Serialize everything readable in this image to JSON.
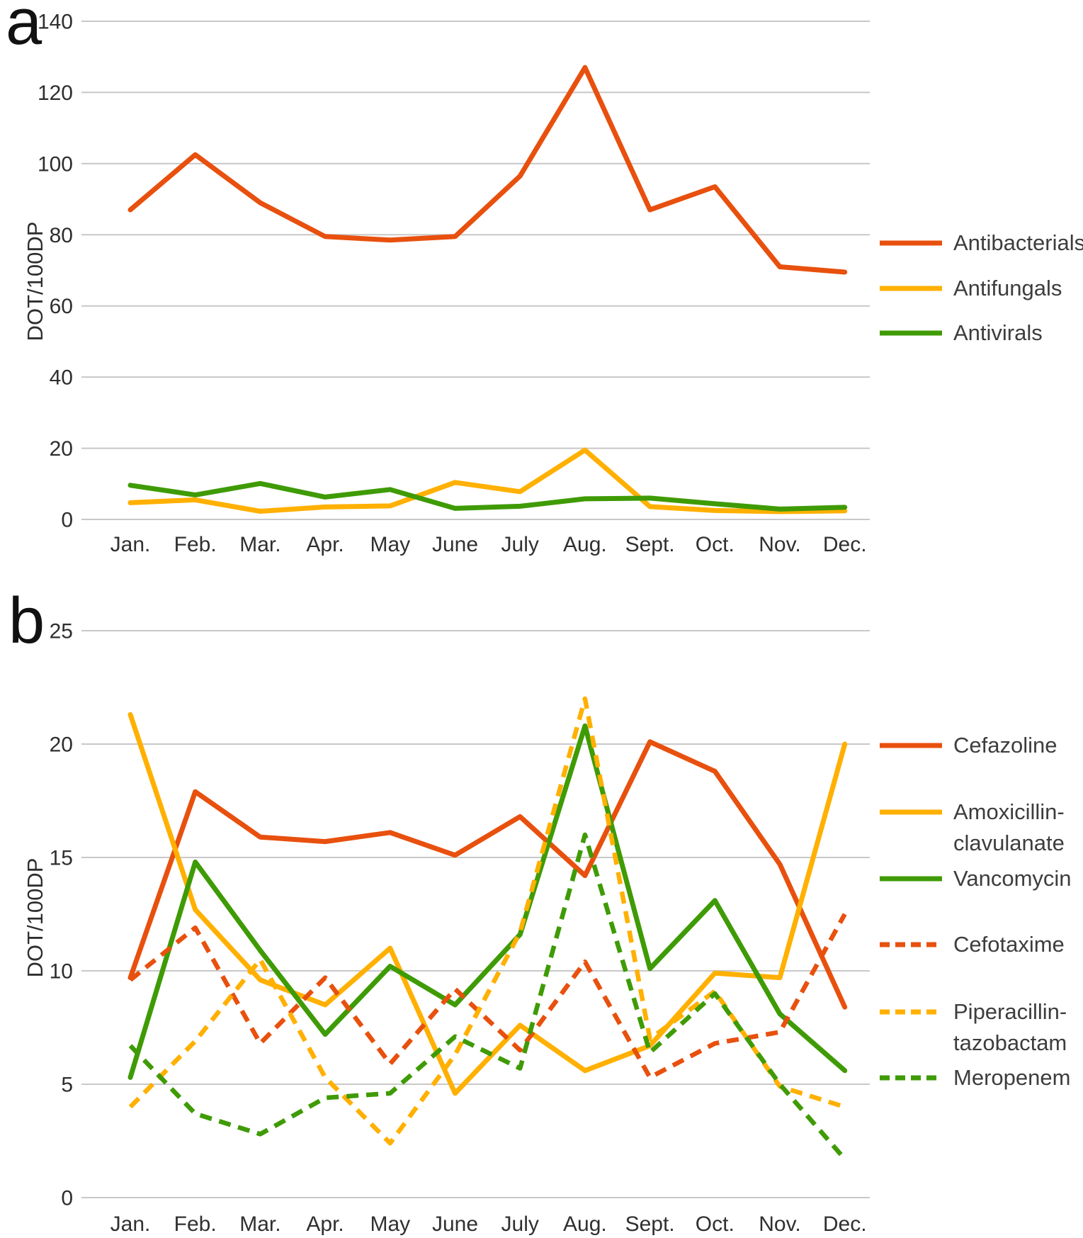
{
  "panels": {
    "a_letter": "a",
    "b_letter": "b"
  },
  "colors": {
    "red": "#E8500E",
    "amber": "#FFB000",
    "green": "#3F9B05",
    "gridline": "#C8C8C8",
    "tick_text": "#2e2e2e",
    "legend_text": "#3d3d3d"
  },
  "chart_data": [
    {
      "type": "line",
      "panel": "a",
      "title": "",
      "xlabel": "",
      "ylabel": "DOT/100DP",
      "categories": [
        "Jan.",
        "Feb.",
        "Mar.",
        "Apr.",
        "May",
        "June",
        "July",
        "Aug.",
        "Sept.",
        "Oct.",
        "Nov.",
        "Dec."
      ],
      "ylim": [
        0,
        140
      ],
      "ytick_step": 20,
      "grid": true,
      "legend_position": "right",
      "series": [
        {
          "name": "Antibacterials",
          "label_lines": [
            "Antibacterials"
          ],
          "line_style": "solid",
          "color": "#E8500E",
          "values": [
            87,
            102.5,
            89,
            79.5,
            78.5,
            79.5,
            96.5,
            127,
            87,
            93.5,
            71,
            69.5
          ]
        },
        {
          "name": "Antifungals",
          "label_lines": [
            "Antifungals"
          ],
          "line_style": "solid",
          "color": "#FFB000",
          "values": [
            4.7,
            5.5,
            2.3,
            3.5,
            3.8,
            10.4,
            7.8,
            19.5,
            3.6,
            2.5,
            2.2,
            2.4
          ]
        },
        {
          "name": "Antivirals",
          "label_lines": [
            "Antivirals"
          ],
          "line_style": "solid",
          "color": "#3F9B05",
          "values": [
            9.6,
            6.9,
            10.1,
            6.3,
            8.4,
            3.1,
            3.7,
            5.8,
            6.0,
            4.4,
            2.9,
            3.4
          ]
        }
      ]
    },
    {
      "type": "line",
      "panel": "b",
      "title": "",
      "xlabel": "",
      "ylabel": "DOT/100DP",
      "categories": [
        "Jan.",
        "Feb.",
        "Mar.",
        "Apr.",
        "May",
        "June",
        "July",
        "Aug.",
        "Sept.",
        "Oct.",
        "Nov.",
        "Dec."
      ],
      "ylim": [
        0,
        25
      ],
      "ytick_step": 5,
      "grid": true,
      "legend_position": "right",
      "series": [
        {
          "name": "Cefazoline",
          "label_lines": [
            "Cefazoline"
          ],
          "line_style": "solid",
          "color": "#E8500E",
          "values": [
            9.7,
            17.9,
            15.9,
            15.7,
            16.1,
            15.1,
            16.8,
            14.2,
            20.1,
            18.8,
            14.7,
            8.4
          ]
        },
        {
          "name": "Amoxicillin-clavulanate",
          "label_lines": [
            "Amoxicillin-",
            "clavulanate"
          ],
          "line_style": "solid",
          "color": "#FFB000",
          "values": [
            21.3,
            12.7,
            9.6,
            8.5,
            11.0,
            4.6,
            7.6,
            5.6,
            6.7,
            9.9,
            9.7,
            20.0
          ]
        },
        {
          "name": "Vancomycin",
          "label_lines": [
            "Vancomycin"
          ],
          "line_style": "solid",
          "color": "#3F9B05",
          "values": [
            5.3,
            14.8,
            10.9,
            7.2,
            10.2,
            8.5,
            11.6,
            20.8,
            10.1,
            13.1,
            8.1,
            5.6
          ]
        },
        {
          "name": "Cefotaxime",
          "label_lines": [
            "Cefotaxime"
          ],
          "line_style": "dashed",
          "color": "#E8500E",
          "values": [
            9.6,
            11.9,
            6.8,
            9.7,
            5.9,
            9.2,
            6.5,
            10.4,
            5.3,
            6.8,
            7.3,
            12.5
          ]
        },
        {
          "name": "Piperacillin-tazobactam",
          "label_lines": [
            "Piperacillin-",
            "tazobactam"
          ],
          "line_style": "dashed",
          "color": "#FFB000",
          "values": [
            4.0,
            6.9,
            10.5,
            5.3,
            2.4,
            6.3,
            11.7,
            22.0,
            7.0,
            9.1,
            4.9,
            4.0
          ]
        },
        {
          "name": "Meropenem",
          "label_lines": [
            "Meropenem"
          ],
          "line_style": "dashed",
          "color": "#3F9B05",
          "values": [
            6.7,
            3.7,
            2.8,
            4.4,
            4.6,
            7.1,
            5.7,
            16.0,
            6.4,
            9.0,
            5.0,
            1.7
          ]
        }
      ]
    }
  ]
}
